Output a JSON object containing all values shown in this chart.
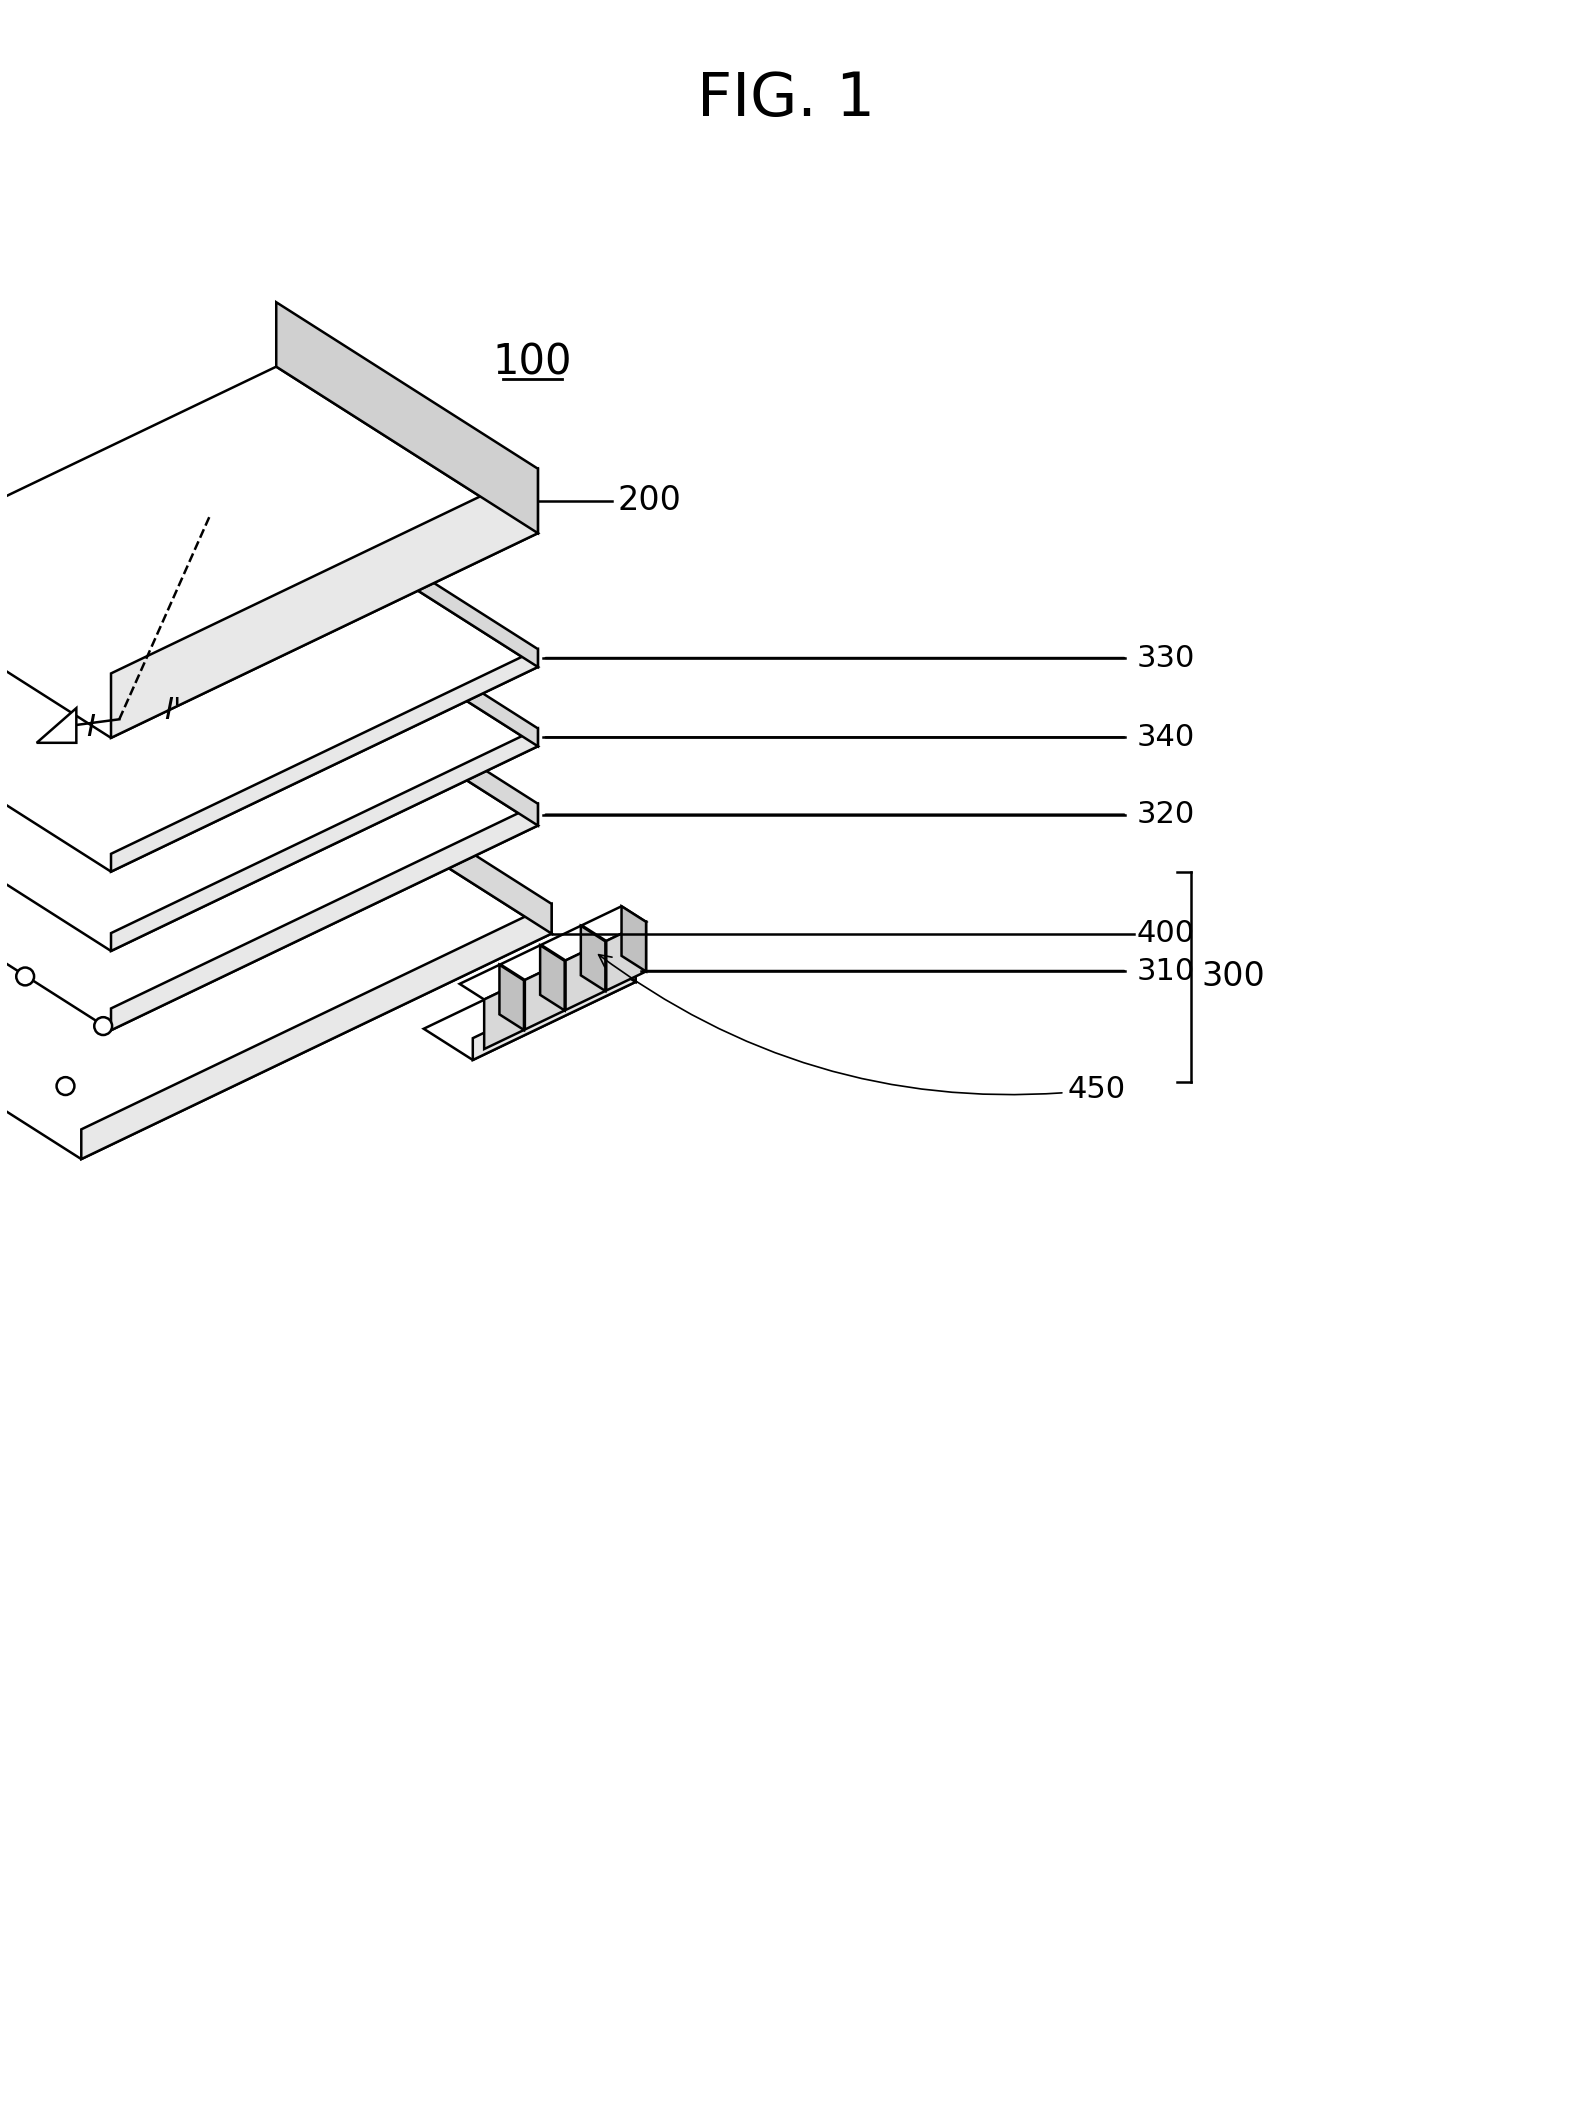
{
  "title": "FIG. 1",
  "label_100": "100",
  "label_200": "200",
  "label_300": "300",
  "label_310": "310",
  "label_320": "320",
  "label_330": "330",
  "label_340": "340",
  "label_400": "400",
  "label_450": "450",
  "bg_color": "#ffffff",
  "line_color": "#000000",
  "line_width": 1.8,
  "fig_width": 15.73,
  "fig_height": 21.16
}
